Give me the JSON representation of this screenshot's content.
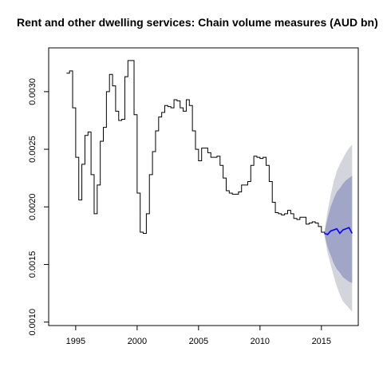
{
  "chart_data": {
    "type": "line",
    "title": "Rent and other dwelling services: Chain volume measures (AUD bn)",
    "xlabel": "",
    "ylabel": "",
    "xlim": [
      1992.8,
      2018.0
    ],
    "ylim": [
      0.00097,
      0.00338
    ],
    "grid": false,
    "x_ticks": [
      {
        "value": 1995,
        "label": "1995"
      },
      {
        "value": 2000,
        "label": "2000"
      },
      {
        "value": 2005,
        "label": "2005"
      },
      {
        "value": 2010,
        "label": "2010"
      },
      {
        "value": 2015,
        "label": "2015"
      }
    ],
    "y_ticks": [
      {
        "value": 0.001,
        "label": "0.0010"
      },
      {
        "value": 0.0015,
        "label": "0.0015"
      },
      {
        "value": 0.002,
        "label": "0.0020"
      },
      {
        "value": 0.0025,
        "label": "0.0025"
      },
      {
        "value": 0.003,
        "label": "0.0030"
      }
    ],
    "series": [
      {
        "role": "observed",
        "color": "#000000",
        "x": [
          1994.25,
          1994.5,
          1994.6,
          1994.75,
          1995.0,
          1995.1,
          1995.25,
          1995.5,
          1995.75,
          1996.0,
          1996.25,
          1996.5,
          1996.6,
          1996.75,
          1997.0,
          1997.25,
          1997.5,
          1997.75,
          1998.0,
          1998.25,
          1998.5,
          1998.75,
          1999.0,
          1999.25,
          1999.5,
          1999.75,
          2000.0,
          2000.25,
          2000.5,
          2000.75,
          2001.0,
          2001.25,
          2001.5,
          2001.75,
          2002.0,
          2002.25,
          2002.5,
          2002.75,
          2003.0,
          2003.25,
          2003.5,
          2003.75,
          2004.0,
          2004.25,
          2004.5,
          2004.75,
          2005.0,
          2005.25,
          2005.5,
          2005.75,
          2006.0,
          2006.25,
          2006.5,
          2006.75,
          2007.0,
          2007.25,
          2007.5,
          2007.75,
          2008.0,
          2008.25,
          2008.5,
          2008.75,
          2009.0,
          2009.25,
          2009.5,
          2009.75,
          2010.0,
          2010.25,
          2010.5,
          2010.75,
          2011.0,
          2011.25,
          2011.5,
          2011.75,
          2012.0,
          2012.25,
          2012.5,
          2012.75,
          2013.0,
          2013.25,
          2013.5,
          2013.75,
          2014.0,
          2014.25,
          2014.5,
          2014.75,
          2015.0,
          2015.25
        ],
        "y": [
          0.00316,
          0.00318,
          0.00318,
          0.00286,
          0.00243,
          0.00243,
          0.00206,
          0.00237,
          0.00262,
          0.00265,
          0.00228,
          0.00194,
          0.00194,
          0.00219,
          0.00257,
          0.00269,
          0.003,
          0.00315,
          0.00305,
          0.00283,
          0.00275,
          0.00276,
          0.00313,
          0.00327,
          0.00327,
          0.0028,
          0.00212,
          0.00178,
          0.00177,
          0.00194,
          0.00228,
          0.00248,
          0.00266,
          0.00278,
          0.00282,
          0.00288,
          0.00287,
          0.00286,
          0.00293,
          0.00292,
          0.00286,
          0.00283,
          0.00293,
          0.00288,
          0.00266,
          0.0025,
          0.0024,
          0.00251,
          0.00251,
          0.00247,
          0.00243,
          0.00243,
          0.00244,
          0.00236,
          0.00225,
          0.00214,
          0.00212,
          0.00211,
          0.00211,
          0.00213,
          0.00219,
          0.00219,
          0.00222,
          0.00236,
          0.00244,
          0.00243,
          0.00242,
          0.00243,
          0.00236,
          0.00222,
          0.00204,
          0.00195,
          0.00194,
          0.00193,
          0.00194,
          0.00197,
          0.00194,
          0.0019,
          0.00189,
          0.00191,
          0.00191,
          0.00185,
          0.00186,
          0.00187,
          0.00186,
          0.00183,
          0.00178,
          0.00177
        ]
      },
      {
        "role": "forecast",
        "color": "#0000ff",
        "x": [
          2015.25,
          2015.5,
          2015.75,
          2016.0,
          2016.25,
          2016.5,
          2016.75,
          2017.0,
          2017.25,
          2017.5
        ],
        "y": [
          0.00177,
          0.00176,
          0.00179,
          0.0018,
          0.00181,
          0.00177,
          0.0018,
          0.00181,
          0.00182,
          0.00177
        ]
      }
    ],
    "bands": [
      {
        "role": "95% interval",
        "color": "#d4d4dc",
        "x": [
          2015.25,
          2015.5,
          2015.75,
          2016.0,
          2016.25,
          2016.5,
          2016.75,
          2017.0,
          2017.25,
          2017.5
        ],
        "lower": [
          0.00175,
          0.0016,
          0.0015,
          0.0014,
          0.00131,
          0.00124,
          0.00118,
          0.00115,
          0.00112,
          0.00109
        ],
        "upper": [
          0.00179,
          0.00196,
          0.0021,
          0.00222,
          0.00231,
          0.00237,
          0.00242,
          0.00247,
          0.00251,
          0.00254
        ]
      },
      {
        "role": "80% interval",
        "color": "#a1a6c9",
        "x": [
          2015.25,
          2015.5,
          2015.75,
          2016.0,
          2016.25,
          2016.5,
          2016.75,
          2017.0,
          2017.25,
          2017.5
        ],
        "lower": [
          0.00176,
          0.00165,
          0.00158,
          0.00151,
          0.00146,
          0.00143,
          0.00139,
          0.00137,
          0.00135,
          0.00134
        ],
        "upper": [
          0.00178,
          0.0019,
          0.002,
          0.00207,
          0.00213,
          0.00216,
          0.0022,
          0.00223,
          0.00225,
          0.00227
        ]
      }
    ]
  }
}
